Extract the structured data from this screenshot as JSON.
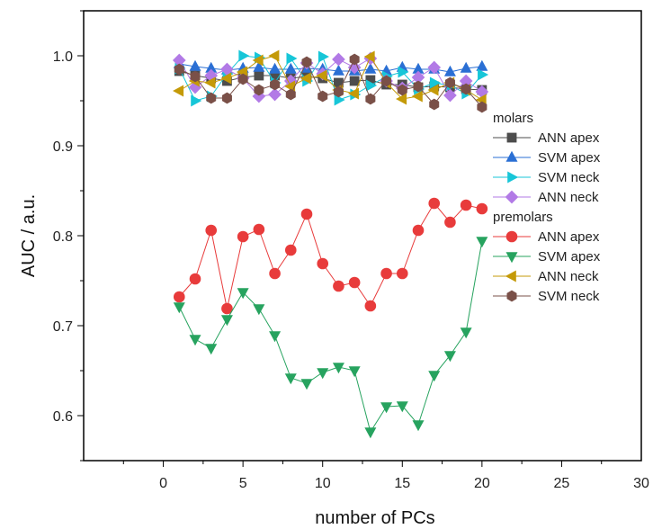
{
  "chart_data": {
    "type": "line",
    "xlabel": "number of PCs",
    "ylabel": "AUC / a.u.",
    "xlim": [
      -5,
      30
    ],
    "ylim": [
      0.55,
      1.05
    ],
    "xticks": [
      0,
      5,
      10,
      15,
      20,
      25,
      30
    ],
    "yticks": [
      0.6,
      0.7,
      0.8,
      0.9,
      1.0
    ],
    "ytick_labels": [
      "0.6",
      "0.7",
      "0.8",
      "0.9",
      "1.0"
    ],
    "grid": false,
    "legend_position": "right",
    "legend_groups": [
      {
        "label": "molars",
        "series_names": [
          "ANN apex",
          "SVM apex",
          "SVM neck",
          "ANN neck"
        ],
        "series_ids": [
          "m_ann_apex",
          "m_svm_apex",
          "m_svm_neck",
          "m_ann_neck"
        ]
      },
      {
        "label": "premolars",
        "series_names": [
          "ANN apex",
          "SVM apex",
          "ANN neck",
          "SVM neck"
        ],
        "series_ids": [
          "p_ann_apex",
          "p_svm_apex",
          "p_ann_neck",
          "p_svm_neck"
        ]
      }
    ],
    "x": [
      1,
      2,
      3,
      4,
      5,
      6,
      7,
      8,
      9,
      10,
      11,
      12,
      13,
      14,
      15,
      16,
      17,
      18,
      19,
      20
    ],
    "series": [
      {
        "id": "m_ann_apex",
        "name": "ANN apex",
        "color": "#4d4d4d",
        "marker": "square",
        "values": [
          0.983,
          0.978,
          0.975,
          0.972,
          0.976,
          0.978,
          0.978,
          0.975,
          0.977,
          0.975,
          0.97,
          0.972,
          0.973,
          0.968,
          0.968,
          0.965,
          0.966,
          0.965,
          0.963,
          0.962
        ]
      },
      {
        "id": "m_svm_apex",
        "name": "SVM apex",
        "color": "#2a6fd4",
        "marker": "triangle-up",
        "values": [
          0.991,
          0.988,
          0.986,
          0.984,
          0.986,
          0.987,
          0.985,
          0.985,
          0.986,
          0.985,
          0.983,
          0.983,
          0.985,
          0.983,
          0.987,
          0.985,
          0.985,
          0.982,
          0.986,
          0.988
        ]
      },
      {
        "id": "m_svm_neck",
        "name": "SVM neck",
        "color": "#17c6d8",
        "marker": "triangle-right",
        "values": [
          0.986,
          0.95,
          0.955,
          0.98,
          1.0,
          0.998,
          0.97,
          0.997,
          0.972,
          0.999,
          0.951,
          0.957,
          0.967,
          0.977,
          0.982,
          0.963,
          0.97,
          0.967,
          0.958,
          0.979
        ]
      },
      {
        "id": "m_ann_neck",
        "name": "ANN neck",
        "color": "#b27ae6",
        "marker": "diamond",
        "values": [
          0.995,
          0.965,
          0.978,
          0.985,
          0.975,
          0.955,
          0.957,
          0.972,
          0.992,
          0.98,
          0.996,
          0.987,
          0.997,
          0.972,
          0.964,
          0.976,
          0.987,
          0.956,
          0.972,
          0.96
        ]
      },
      {
        "id": "p_ann_apex",
        "name": "ANN apex",
        "color": "#e83b3b",
        "marker": "circle",
        "values": [
          0.732,
          0.752,
          0.806,
          0.719,
          0.799,
          0.807,
          0.758,
          0.784,
          0.824,
          0.769,
          0.744,
          0.748,
          0.722,
          0.758,
          0.758,
          0.806,
          0.836,
          0.815,
          0.834,
          0.83
        ]
      },
      {
        "id": "p_svm_apex",
        "name": "SVM apex",
        "color": "#27a35f",
        "marker": "triangle-down",
        "values": [
          0.721,
          0.685,
          0.675,
          0.707,
          0.737,
          0.719,
          0.689,
          0.642,
          0.636,
          0.648,
          0.654,
          0.65,
          0.582,
          0.61,
          0.611,
          0.59,
          0.645,
          0.667,
          0.693,
          0.794
        ]
      },
      {
        "id": "p_ann_neck",
        "name": "ANN neck",
        "color": "#c49a08",
        "marker": "triangle-left",
        "values": [
          0.961,
          0.972,
          0.97,
          0.975,
          0.982,
          0.995,
          1.0,
          0.966,
          0.975,
          0.978,
          0.962,
          0.958,
          0.999,
          0.97,
          0.952,
          0.955,
          0.962,
          0.97,
          0.962,
          0.951
        ]
      },
      {
        "id": "p_svm_neck",
        "name": "SVM neck",
        "color": "#7a5048",
        "marker": "hexagon",
        "values": [
          0.985,
          0.977,
          0.953,
          0.953,
          0.974,
          0.962,
          0.968,
          0.957,
          0.993,
          0.955,
          0.96,
          0.996,
          0.952,
          0.972,
          0.962,
          0.966,
          0.946,
          0.97,
          0.963,
          0.943
        ]
      }
    ]
  }
}
